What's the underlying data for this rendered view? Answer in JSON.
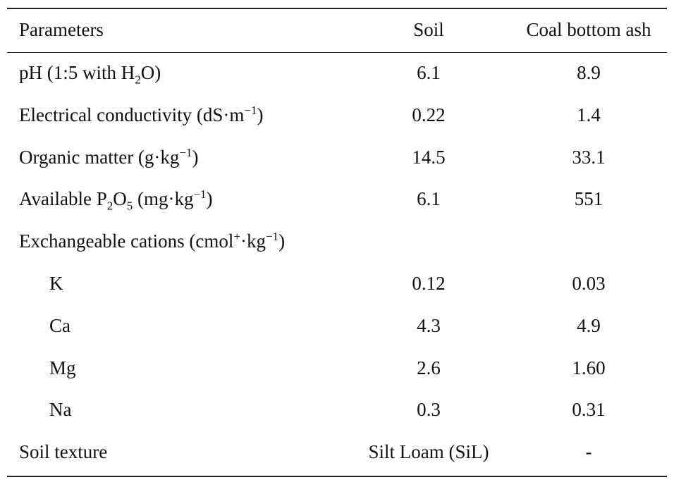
{
  "table": {
    "header": [
      "Parameters",
      "Soil",
      "Coal bottom ash"
    ],
    "rows": [
      {
        "label": [
          {
            "t": "pH (1:5 with H"
          },
          {
            "sub": "2"
          },
          {
            "t": "O)"
          }
        ],
        "cells": [
          "6.1",
          "8.9"
        ]
      },
      {
        "label": [
          {
            "t": "Electrical conductivity (dS·m"
          },
          {
            "sup": "−1"
          },
          {
            "t": ")"
          }
        ],
        "cells": [
          "0.22",
          "1.4"
        ]
      },
      {
        "label": [
          {
            "t": "Organic matter (g·kg"
          },
          {
            "sup": "−1"
          },
          {
            "t": ")"
          }
        ],
        "cells": [
          "14.5",
          "33.1"
        ]
      },
      {
        "label": [
          {
            "t": "Available P"
          },
          {
            "sub": "2"
          },
          {
            "t": "O"
          },
          {
            "sub": "5"
          },
          {
            "t": " (mg·kg"
          },
          {
            "sup": "−1"
          },
          {
            "t": ")"
          }
        ],
        "cells": [
          "6.1",
          "551"
        ]
      },
      {
        "label": [
          {
            "t": "Exchangeable cations (cmol"
          },
          {
            "sup": "+"
          },
          {
            "t": "·kg"
          },
          {
            "sup": "−1"
          },
          {
            "t": ")"
          }
        ],
        "cells": [],
        "sub_rows": [
          {
            "label": [
              {
                "t": "K"
              }
            ],
            "cells": [
              "0.12",
              "0.03"
            ]
          },
          {
            "label": [
              {
                "t": "Ca"
              }
            ],
            "cells": [
              "4.3",
              "4.9"
            ]
          },
          {
            "label": [
              {
                "t": "Mg"
              }
            ],
            "cells": [
              "2.6",
              "1.60"
            ]
          },
          {
            "label": [
              {
                "t": "Na"
              }
            ],
            "cells": [
              "0.3",
              "0.31"
            ]
          }
        ]
      },
      {
        "label": [
          {
            "t": "Soil texture"
          }
        ],
        "cells": [
          "Silt Loam (SiL)",
          "-"
        ]
      }
    ]
  }
}
